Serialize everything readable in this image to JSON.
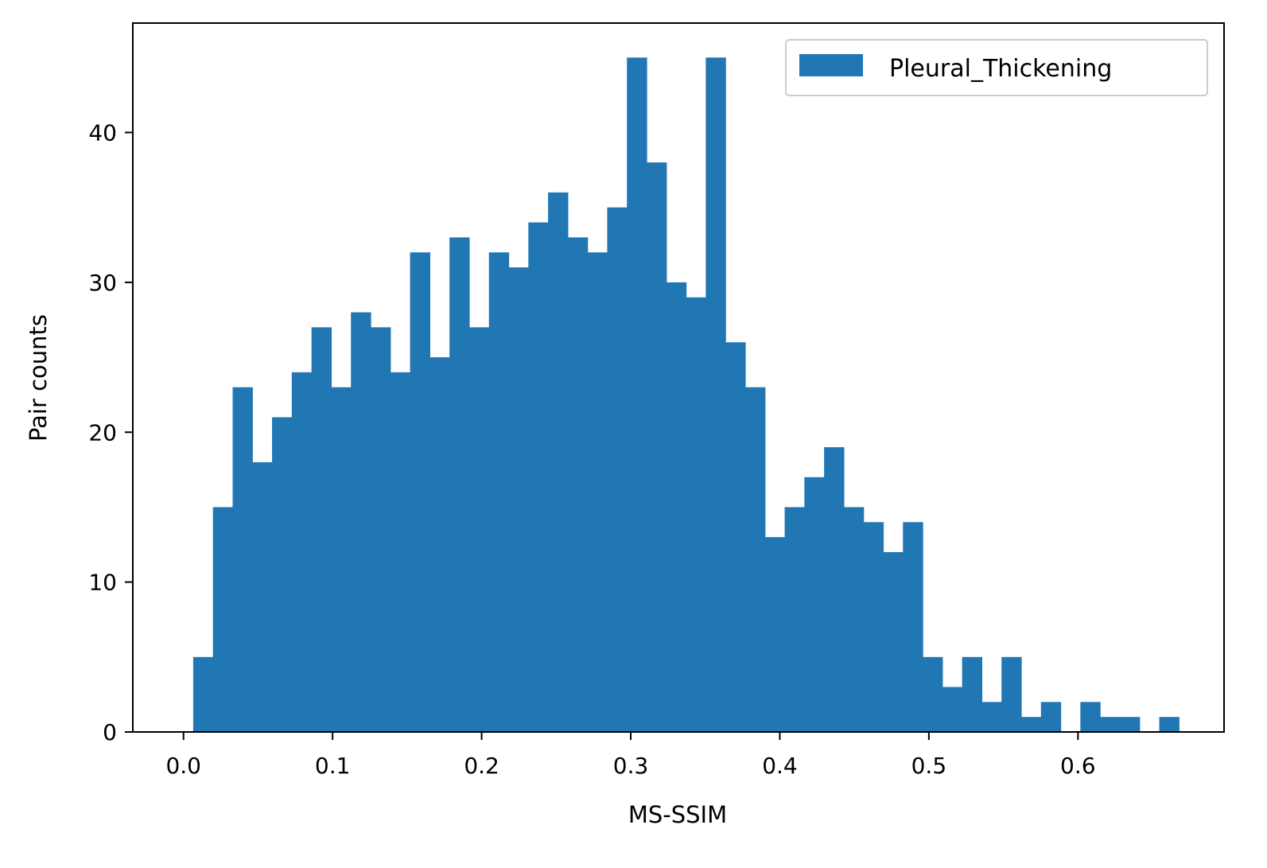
{
  "chart_data": {
    "type": "bar",
    "title": "",
    "xlabel": "MS-SSIM",
    "ylabel": "Pair counts",
    "xlim": [
      -0.034,
      0.698
    ],
    "ylim": [
      0,
      47.3
    ],
    "grid": false,
    "legend_position": "top-right",
    "bin_start": 0.0065,
    "bin_width": 0.013225,
    "series": [
      {
        "name": "Pleural_Thickening",
        "color": "#2077b4",
        "values": [
          5,
          15,
          23,
          18,
          21,
          24,
          27,
          23,
          28,
          27,
          24,
          32,
          25,
          33,
          27,
          32,
          31,
          34,
          36,
          33,
          32,
          35,
          45,
          38,
          30,
          29,
          45,
          26,
          23,
          13,
          15,
          17,
          19,
          15,
          14,
          12,
          14,
          5,
          3,
          5,
          2,
          5,
          1,
          2,
          0,
          2,
          1,
          1,
          0,
          1
        ]
      }
    ],
    "x_ticks": [
      "0.0",
      "0.1",
      "0.2",
      "0.3",
      "0.4",
      "0.5",
      "0.6"
    ],
    "x_tick_values": [
      0.0,
      0.1,
      0.2,
      0.3,
      0.4,
      0.5,
      0.6
    ],
    "y_ticks": [
      "0",
      "10",
      "20",
      "30",
      "40"
    ],
    "y_tick_values": [
      0,
      10,
      20,
      30,
      40
    ]
  }
}
